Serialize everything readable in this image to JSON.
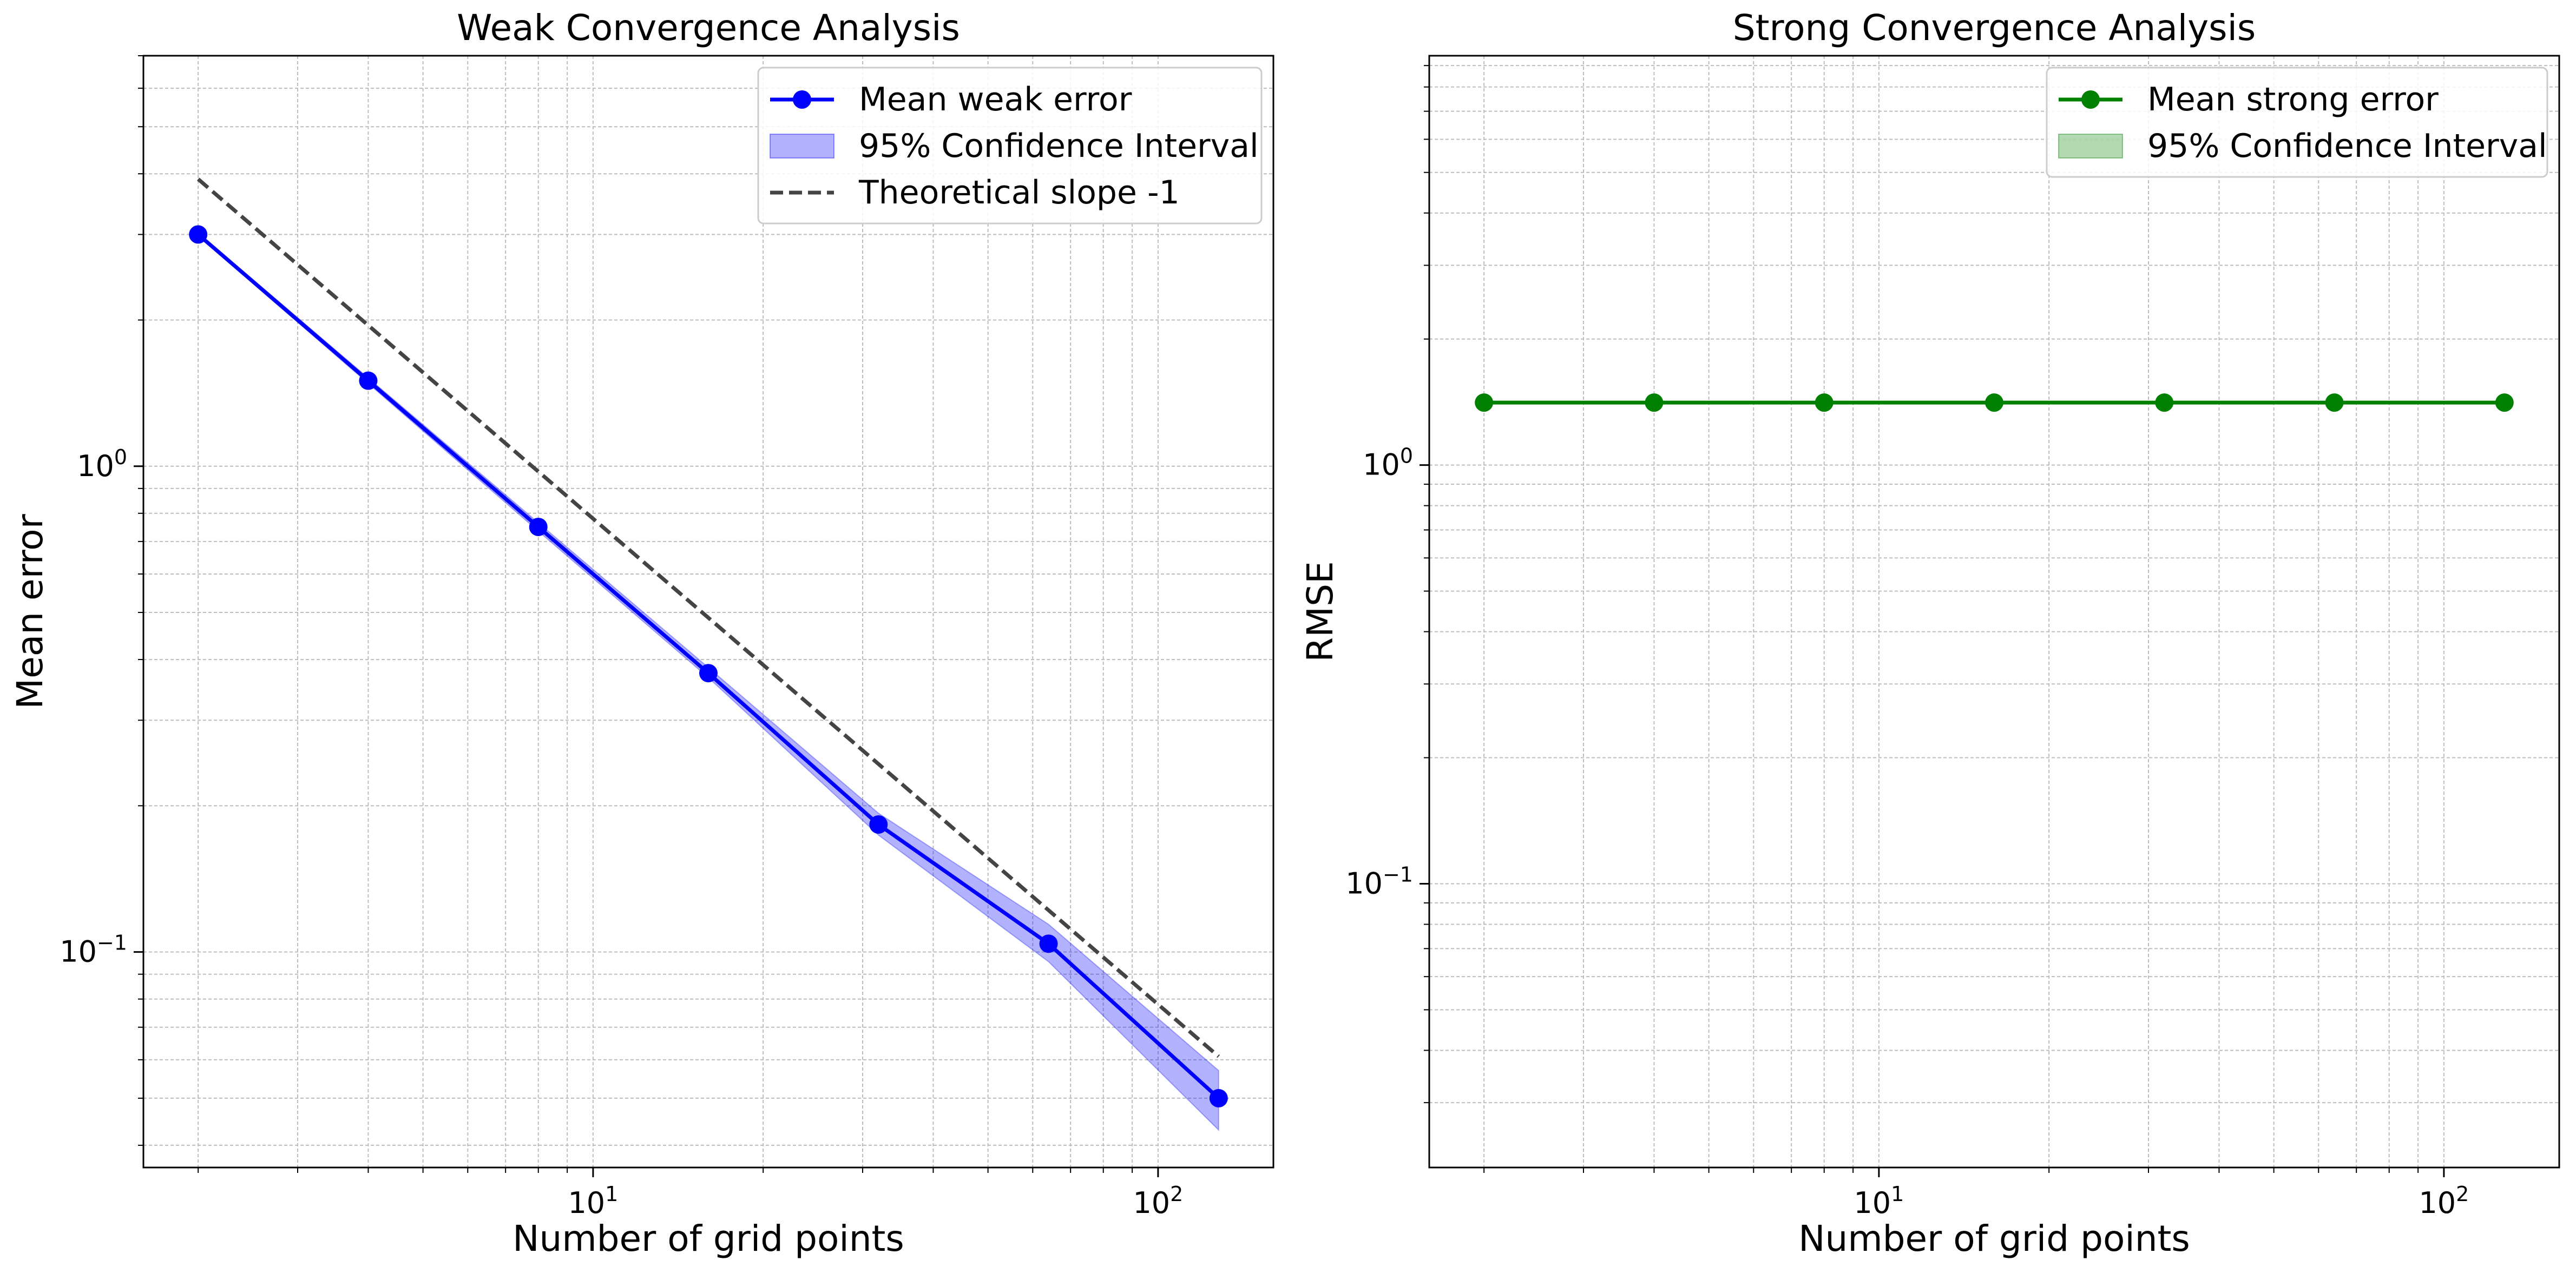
{
  "chart_data": [
    {
      "type": "line",
      "title": "Weak Convergence Analysis",
      "xlabel": "Number of grid points",
      "ylabel": "Mean error",
      "xscale": "log",
      "yscale": "log",
      "xlim": [
        1.6,
        160
      ],
      "ylim": [
        0.036,
        7.0
      ],
      "grid": true,
      "legend_position": "top-right",
      "x_tick_labels": [
        {
          "base": "10",
          "exp": "1",
          "value": 10
        },
        {
          "base": "10",
          "exp": "2",
          "value": 100
        }
      ],
      "y_tick_labels": [
        {
          "base": "10",
          "exp": "0",
          "value": 1
        },
        {
          "base": "10",
          "exp": "−1",
          "value": 0.1
        }
      ],
      "x": [
        2,
        4,
        8,
        16,
        32,
        64,
        128
      ],
      "series": [
        {
          "name": "Mean weak error",
          "kind": "line-marker",
          "color": "#0000ff",
          "values": [
            3.0,
            1.5,
            0.75,
            0.375,
            0.183,
            0.104,
            0.05
          ]
        },
        {
          "name": "95% Confidence Interval",
          "kind": "band",
          "color": "#0000ff",
          "lower": [
            2.98,
            1.48,
            0.735,
            0.367,
            0.174,
            0.0955,
            0.043
          ],
          "upper": [
            3.02,
            1.52,
            0.765,
            0.385,
            0.193,
            0.114,
            0.057
          ]
        },
        {
          "name": "Theoretical slope -1",
          "kind": "dashed",
          "color": "#444444",
          "values": [
            3.9,
            1.95,
            0.975,
            0.4875,
            0.24375,
            0.121875,
            0.0609375
          ]
        }
      ]
    },
    {
      "type": "line",
      "title": "Strong Convergence Analysis",
      "xlabel": "Number of grid points",
      "ylabel": "RMSE",
      "xscale": "log",
      "yscale": "log",
      "xlim": [
        1.6,
        160
      ],
      "ylim": [
        0.021,
        9.5
      ],
      "grid": true,
      "legend_position": "top-right",
      "x_tick_labels": [
        {
          "base": "10",
          "exp": "1",
          "value": 10
        },
        {
          "base": "10",
          "exp": "2",
          "value": 100
        }
      ],
      "y_tick_labels": [
        {
          "base": "10",
          "exp": "0",
          "value": 1
        },
        {
          "base": "10",
          "exp": "−1",
          "value": 0.1
        }
      ],
      "x": [
        2,
        4,
        8,
        16,
        32,
        64,
        128
      ],
      "series": [
        {
          "name": "Mean strong error",
          "kind": "line-marker",
          "color": "#008000",
          "values": [
            1.41,
            1.41,
            1.41,
            1.41,
            1.41,
            1.41,
            1.41
          ]
        },
        {
          "name": "95% Confidence Interval",
          "kind": "band",
          "color": "#008000",
          "lower": [
            1.405,
            1.405,
            1.405,
            1.405,
            1.405,
            1.405,
            1.405
          ],
          "upper": [
            1.415,
            1.415,
            1.415,
            1.415,
            1.415,
            1.415,
            1.415
          ]
        }
      ]
    }
  ]
}
